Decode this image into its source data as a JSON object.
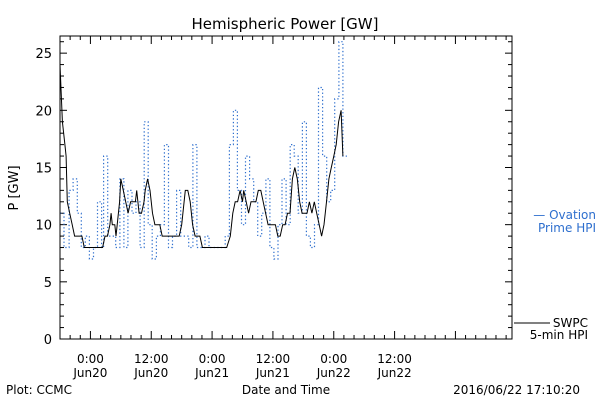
{
  "chart_data": {
    "type": "line",
    "title": "Hemispheric Power [GW]",
    "ylabel": "P [GW]",
    "xlabel": "Date and Time",
    "ylim": [
      0,
      26.5
    ],
    "xlim": [
      -0.25,
      3.465
    ],
    "x_units": "days since 2016/06/20 00:00",
    "yticks": [
      0,
      5,
      10,
      15,
      20,
      25
    ],
    "xticks": [
      {
        "value": 0.0,
        "line1": "0:00",
        "line2": "Jun20"
      },
      {
        "value": 0.5,
        "line1": "12:00",
        "line2": "Jun20"
      },
      {
        "value": 1.0,
        "line1": "0:00",
        "line2": "Jun21"
      },
      {
        "value": 1.5,
        "line1": "12:00",
        "line2": "Jun21"
      },
      {
        "value": 2.0,
        "line1": "0:00",
        "line2": "Jun22"
      },
      {
        "value": 2.5,
        "line1": "12:00",
        "line2": "Jun22"
      }
    ],
    "series": [
      {
        "name": "Ovation Prime HPI",
        "legend_line1": "— Ovation",
        "legend_line2": "Prime HPI",
        "color": "#2e6fce",
        "style": "dotted-step",
        "points": [
          [
            -0.25,
            11
          ],
          [
            -0.217,
            8
          ],
          [
            -0.175,
            13
          ],
          [
            -0.142,
            14
          ],
          [
            -0.108,
            11
          ],
          [
            -0.075,
            8
          ],
          [
            -0.042,
            9
          ],
          [
            -0.008,
            7
          ],
          [
            0.025,
            8
          ],
          [
            0.058,
            12
          ],
          [
            0.092,
            8
          ],
          [
            0.108,
            16
          ],
          [
            0.142,
            9
          ],
          [
            0.175,
            9
          ],
          [
            0.208,
            8
          ],
          [
            0.242,
            14
          ],
          [
            0.275,
            8
          ],
          [
            0.308,
            13
          ],
          [
            0.342,
            11
          ],
          [
            0.375,
            12
          ],
          [
            0.408,
            8
          ],
          [
            0.442,
            19
          ],
          [
            0.475,
            10
          ],
          [
            0.508,
            7
          ],
          [
            0.542,
            9
          ],
          [
            0.575,
            10
          ],
          [
            0.608,
            17
          ],
          [
            0.642,
            8
          ],
          [
            0.675,
            9
          ],
          [
            0.708,
            13
          ],
          [
            0.742,
            9
          ],
          [
            0.775,
            9
          ],
          [
            0.808,
            8
          ],
          [
            0.842,
            17
          ],
          [
            0.875,
            8
          ],
          [
            0.908,
            8
          ],
          [
            0.942,
            9
          ],
          [
            0.975,
            8
          ],
          [
            1.008,
            8
          ],
          [
            1.042,
            8
          ],
          [
            1.075,
            8
          ],
          [
            1.108,
            9
          ],
          [
            1.142,
            17
          ],
          [
            1.175,
            20
          ],
          [
            1.208,
            13
          ],
          [
            1.242,
            10
          ],
          [
            1.275,
            16
          ],
          [
            1.308,
            14
          ],
          [
            1.342,
            12
          ],
          [
            1.375,
            9
          ],
          [
            1.408,
            11
          ],
          [
            1.442,
            14
          ],
          [
            1.475,
            8
          ],
          [
            1.508,
            7
          ],
          [
            1.542,
            10
          ],
          [
            1.575,
            14
          ],
          [
            1.608,
            10
          ],
          [
            1.642,
            17
          ],
          [
            1.675,
            16
          ],
          [
            1.708,
            11
          ],
          [
            1.742,
            19
          ],
          [
            1.775,
            9
          ],
          [
            1.808,
            8
          ],
          [
            1.842,
            10
          ],
          [
            1.875,
            22
          ],
          [
            1.908,
            16
          ],
          [
            1.942,
            12
          ],
          [
            1.975,
            13
          ],
          [
            2.008,
            21
          ],
          [
            2.042,
            26
          ],
          [
            2.075,
            16
          ]
        ]
      },
      {
        "name": "SWPC 5-min HPI",
        "legend_line1": "SWPC",
        "legend_line2": "5-min HPI",
        "color": "#000000",
        "style": "solid",
        "points": [
          [
            -0.25,
            24
          ],
          [
            -0.23,
            19
          ],
          [
            -0.21,
            17
          ],
          [
            -0.2,
            16
          ],
          [
            -0.19,
            12
          ],
          [
            -0.17,
            11
          ],
          [
            -0.15,
            10
          ],
          [
            -0.13,
            9
          ],
          [
            -0.11,
            9
          ],
          [
            -0.09,
            9
          ],
          [
            -0.07,
            9
          ],
          [
            -0.05,
            8
          ],
          [
            -0.03,
            8
          ],
          [
            -0.01,
            8
          ],
          [
            0.01,
            8
          ],
          [
            0.04,
            8
          ],
          [
            0.07,
            8
          ],
          [
            0.1,
            8
          ],
          [
            0.12,
            9
          ],
          [
            0.14,
            9
          ],
          [
            0.16,
            10
          ],
          [
            0.17,
            11
          ],
          [
            0.18,
            10
          ],
          [
            0.2,
            10
          ],
          [
            0.21,
            9
          ],
          [
            0.22,
            10
          ],
          [
            0.24,
            12
          ],
          [
            0.25,
            14
          ],
          [
            0.27,
            13
          ],
          [
            0.29,
            12
          ],
          [
            0.31,
            11
          ],
          [
            0.33,
            12
          ],
          [
            0.35,
            12
          ],
          [
            0.37,
            12
          ],
          [
            0.38,
            13
          ],
          [
            0.39,
            12
          ],
          [
            0.4,
            11
          ],
          [
            0.42,
            11
          ],
          [
            0.44,
            12
          ],
          [
            0.45,
            13
          ],
          [
            0.47,
            14
          ],
          [
            0.49,
            13
          ],
          [
            0.51,
            11
          ],
          [
            0.53,
            10
          ],
          [
            0.55,
            10
          ],
          [
            0.57,
            10
          ],
          [
            0.59,
            9
          ],
          [
            0.61,
            9
          ],
          [
            0.63,
            9
          ],
          [
            0.65,
            9
          ],
          [
            0.67,
            9
          ],
          [
            0.69,
            9
          ],
          [
            0.71,
            9
          ],
          [
            0.73,
            9
          ],
          [
            0.75,
            10
          ],
          [
            0.77,
            12
          ],
          [
            0.78,
            13
          ],
          [
            0.8,
            13
          ],
          [
            0.82,
            12
          ],
          [
            0.84,
            10
          ],
          [
            0.86,
            9
          ],
          [
            0.88,
            9
          ],
          [
            0.9,
            9
          ],
          [
            0.92,
            8
          ],
          [
            0.94,
            8
          ],
          [
            0.96,
            8
          ],
          [
            0.98,
            8
          ],
          [
            1.0,
            8
          ],
          [
            1.03,
            8
          ],
          [
            1.06,
            8
          ],
          [
            1.09,
            8
          ],
          [
            1.12,
            8
          ],
          [
            1.15,
            9
          ],
          [
            1.17,
            11
          ],
          [
            1.19,
            12
          ],
          [
            1.21,
            12
          ],
          [
            1.23,
            13
          ],
          [
            1.25,
            12
          ],
          [
            1.26,
            13
          ],
          [
            1.28,
            12
          ],
          [
            1.3,
            11
          ],
          [
            1.32,
            12
          ],
          [
            1.34,
            12
          ],
          [
            1.36,
            12
          ],
          [
            1.38,
            13
          ],
          [
            1.4,
            13
          ],
          [
            1.42,
            12
          ],
          [
            1.44,
            11
          ],
          [
            1.46,
            10
          ],
          [
            1.48,
            10
          ],
          [
            1.5,
            10
          ],
          [
            1.52,
            10
          ],
          [
            1.54,
            9
          ],
          [
            1.56,
            9
          ],
          [
            1.58,
            10
          ],
          [
            1.6,
            10
          ],
          [
            1.62,
            11
          ],
          [
            1.64,
            11
          ],
          [
            1.66,
            14
          ],
          [
            1.68,
            15
          ],
          [
            1.7,
            14
          ],
          [
            1.72,
            12
          ],
          [
            1.74,
            11
          ],
          [
            1.76,
            11
          ],
          [
            1.78,
            11
          ],
          [
            1.8,
            12
          ],
          [
            1.82,
            11
          ],
          [
            1.84,
            12
          ],
          [
            1.86,
            11
          ],
          [
            1.88,
            10
          ],
          [
            1.9,
            9
          ],
          [
            1.92,
            10
          ],
          [
            1.94,
            12
          ],
          [
            1.96,
            14
          ],
          [
            1.98,
            15
          ],
          [
            2.0,
            16
          ],
          [
            2.02,
            17
          ],
          [
            2.04,
            19
          ],
          [
            2.06,
            20
          ],
          [
            2.075,
            16
          ]
        ]
      }
    ],
    "footer_left": "Plot: CCMC",
    "footer_right": "2016/06/22 17:10:20"
  }
}
